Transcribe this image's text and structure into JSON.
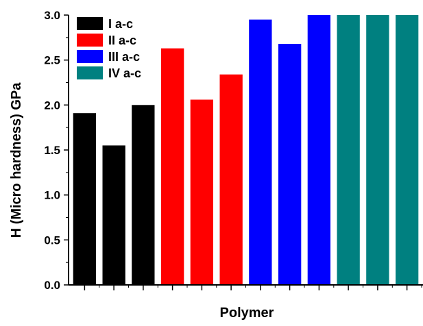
{
  "chart_data": {
    "type": "bar",
    "title": "",
    "xlabel": "Polymer",
    "ylabel": "H (Micro hardness) GPa",
    "ylim": [
      0,
      3.0
    ],
    "yticks": [
      "0.0",
      "0.5",
      "1.0",
      "1.5",
      "2.0",
      "2.5",
      "3.0"
    ],
    "grid": false,
    "legend_position": "top-left",
    "series": [
      {
        "name": "I a-c",
        "color": "#000000",
        "values": [
          1.91,
          1.55,
          2.0
        ]
      },
      {
        "name": "II a-c",
        "color": "#ff0000",
        "values": [
          2.63,
          2.06,
          2.34
        ]
      },
      {
        "name": "III a-c",
        "color": "#0000ff",
        "values": [
          2.95,
          2.68,
          3.0
        ]
      },
      {
        "name": "IV a-c",
        "color": "#008080",
        "values": [
          3.0,
          3.0,
          3.0
        ]
      }
    ]
  }
}
